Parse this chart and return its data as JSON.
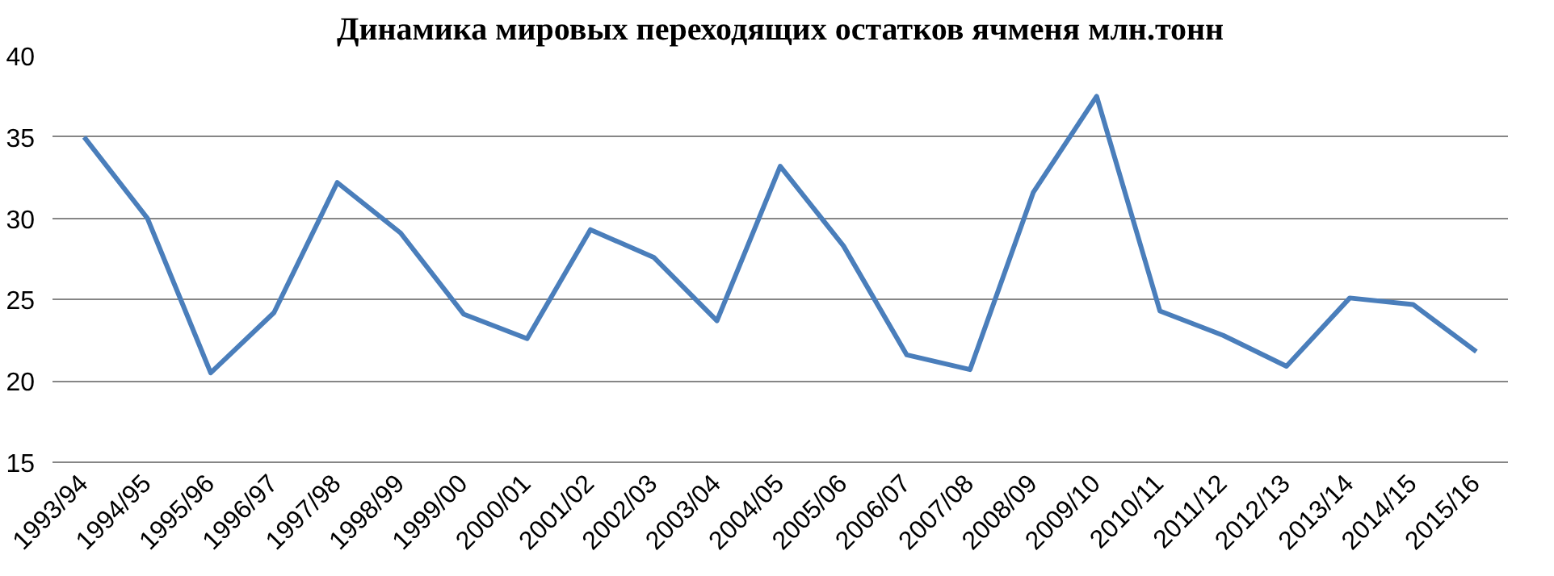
{
  "chart_data": {
    "type": "line",
    "title": "Динамика мировых переходящих остатков ячменя млн.тонн",
    "categories": [
      "1993/94",
      "1994/95",
      "1995/96",
      "1996/97",
      "1997/98",
      "1998/99",
      "1999/00",
      "2000/01",
      "2001/02",
      "2002/03",
      "2003/04",
      "2004/05",
      "2005/06",
      "2006/07",
      "2007/08",
      "2008/09",
      "2009/10",
      "2010/11",
      "2011/12",
      "2012/13",
      "2013/14",
      "2014/15",
      "2015/16"
    ],
    "series": [
      {
        "color": "#4a7ebb",
        "values": [
          35.0,
          30.0,
          20.5,
          24.2,
          32.2,
          29.1,
          24.1,
          22.6,
          29.3,
          27.6,
          23.7,
          33.2,
          28.3,
          21.6,
          20.7,
          31.6,
          37.5,
          24.3,
          22.8,
          20.9,
          25.1,
          24.7,
          21.8
        ]
      }
    ],
    "ylim": [
      15,
      40
    ],
    "yticks": [
      15,
      20,
      25,
      30,
      35,
      40
    ],
    "grid": "y",
    "marker": "none",
    "line_style": "solid"
  }
}
